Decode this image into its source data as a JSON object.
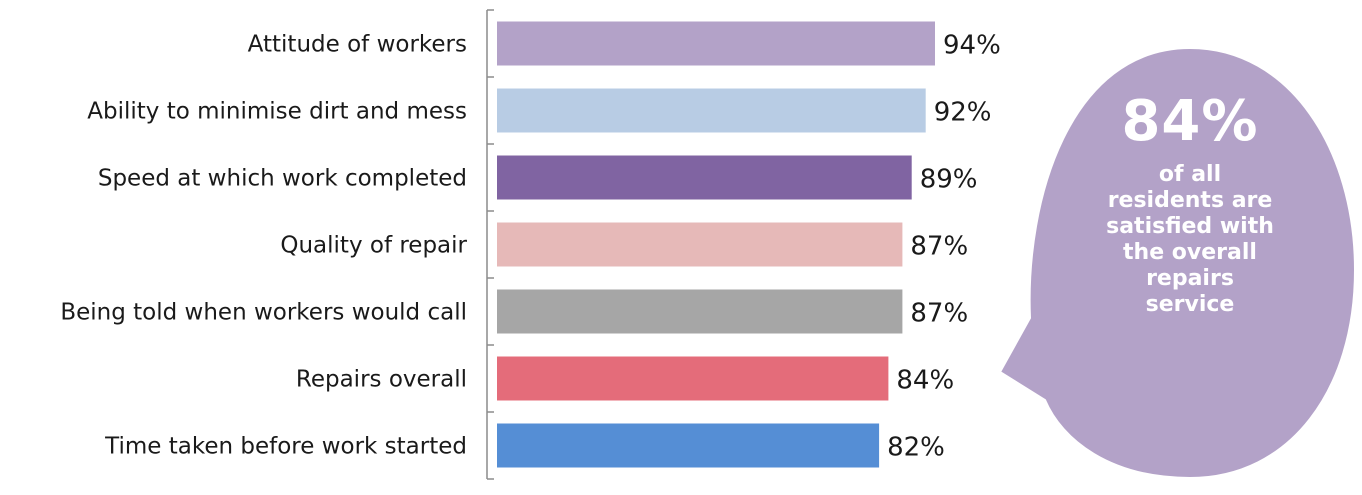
{
  "chart_data": {
    "type": "bar",
    "orientation": "horizontal",
    "categories": [
      "Attitude of workers",
      "Ability to minimise dirt and mess",
      "Speed at which work completed",
      "Quality of repair",
      "Being told when workers would call",
      "Repairs overall",
      "Time taken before work started"
    ],
    "values": [
      94,
      92,
      89,
      87,
      87,
      84,
      82
    ],
    "value_labels": [
      "94%",
      "92%",
      "89%",
      "87%",
      "87%",
      "84%",
      "82%"
    ],
    "colors": [
      "#b3a2c8",
      "#b8cce4",
      "#8064a2",
      "#e6b9b8",
      "#a6a6a6",
      "#e46c7a",
      "#558ed5"
    ],
    "xlim": [
      0,
      100
    ],
    "grid": false,
    "legend": "none"
  },
  "callout": {
    "headline": "84%",
    "body": "of all residents are satisfied with the overall repairs service",
    "fill_color": "#b3a2c8"
  }
}
